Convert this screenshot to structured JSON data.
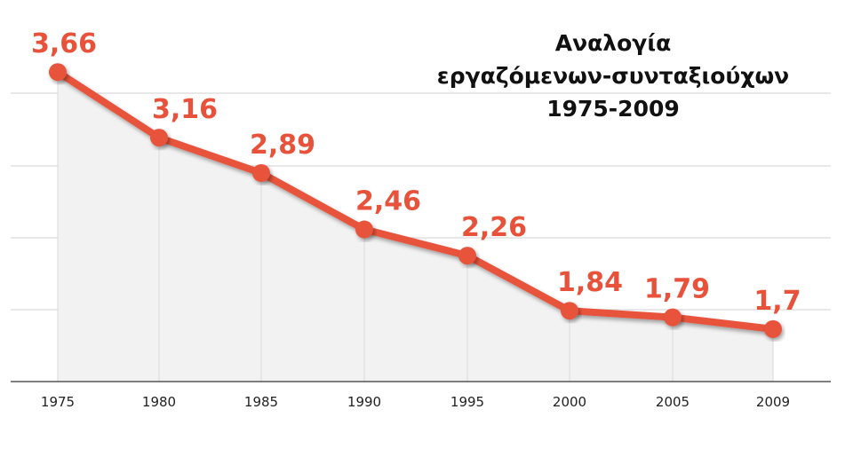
{
  "chart_data": {
    "type": "line",
    "title_lines": [
      "Αναλογία",
      "εργαζόμενων-συνταξιούχων",
      "1975-2009"
    ],
    "categories": [
      "1975",
      "1980",
      "1985",
      "1990",
      "1995",
      "2000",
      "2005",
      "2009"
    ],
    "values": [
      3.66,
      3.16,
      2.89,
      2.46,
      2.26,
      1.84,
      1.79,
      1.7
    ],
    "data_labels": [
      "3,66",
      "3,16",
      "2,89",
      "2,46",
      "2,26",
      "1,84",
      "1,79",
      "1,7"
    ],
    "xlabel": "",
    "ylabel": "",
    "grid": true,
    "colors": {
      "line": "#e8523b",
      "area": "#f2f2f2",
      "grid": "#d9d9d9",
      "axis": "#555555"
    }
  }
}
